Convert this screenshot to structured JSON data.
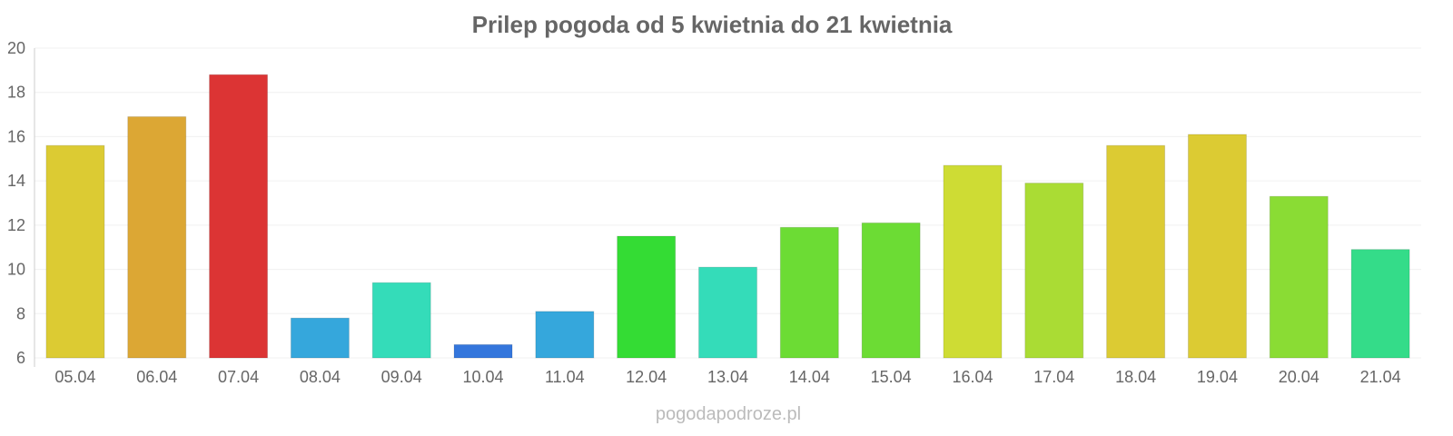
{
  "chart_data": {
    "type": "bar",
    "title": "Prilep pogoda od 5 kwietnia do 21 kwietnia",
    "xlabel": "",
    "ylabel": "",
    "ylim": [
      6,
      20
    ],
    "yticks": [
      6,
      8,
      10,
      12,
      14,
      16,
      18,
      20
    ],
    "grid": true,
    "categories": [
      "05.04",
      "06.04",
      "07.04",
      "08.04",
      "09.04",
      "10.04",
      "11.04",
      "12.04",
      "13.04",
      "14.04",
      "15.04",
      "16.04",
      "17.04",
      "18.04",
      "19.04",
      "20.04",
      "21.04"
    ],
    "values": [
      15.6,
      16.9,
      18.8,
      7.8,
      9.4,
      6.6,
      8.1,
      11.5,
      10.1,
      11.9,
      12.1,
      14.7,
      13.9,
      15.6,
      16.1,
      13.3,
      10.9
    ],
    "colors": [
      "#dccb33",
      "#dca734",
      "#dc3434",
      "#35a7dc",
      "#34dcb9",
      "#3476dc",
      "#35a7dc",
      "#34dc34",
      "#34dcb9",
      "#6cdc34",
      "#6cdc34",
      "#cedc34",
      "#aadc34",
      "#dccb33",
      "#dccb33",
      "#8adc34",
      "#34dc89"
    ]
  },
  "credit": "pogodapodroze.pl"
}
